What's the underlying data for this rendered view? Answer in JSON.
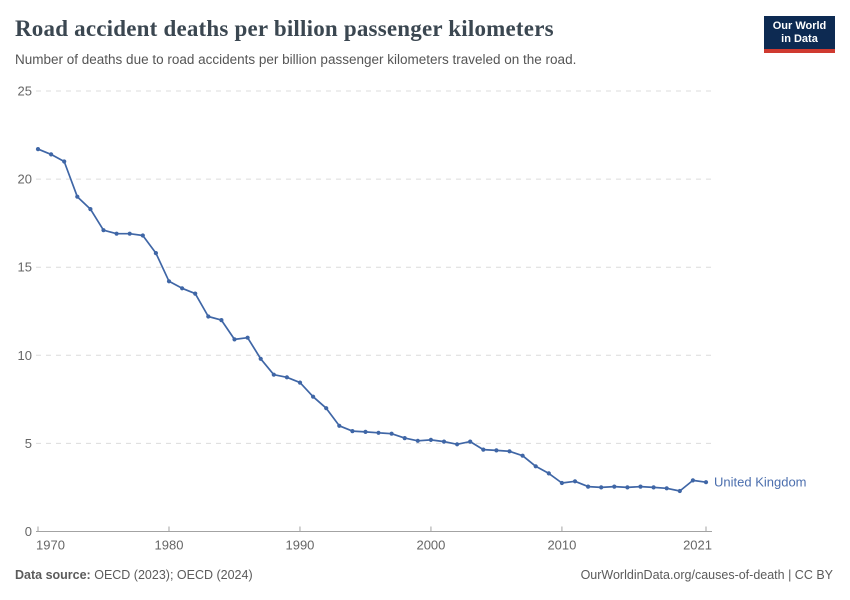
{
  "header": {
    "title": "Road accident deaths per billion passenger kilometers",
    "subtitle": "Number of deaths due to road accidents per billion passenger kilometers traveled on the road.",
    "logo": {
      "line1": "Our World",
      "line2": "in Data"
    }
  },
  "chart_data": {
    "type": "line",
    "title": "Road accident deaths per billion passenger kilometers",
    "xlabel": "",
    "ylabel": "",
    "xlim": [
      1970,
      2021
    ],
    "ylim": [
      0,
      25
    ],
    "x_ticks": [
      1970,
      1980,
      1990,
      2000,
      2010,
      2021
    ],
    "y_ticks": [
      0,
      5,
      10,
      15,
      20,
      25
    ],
    "grid": "horizontal-dashed",
    "legend_position": "end-of-line-label",
    "series": [
      {
        "name": "United Kingdom",
        "color": "#3f66a6",
        "label_color": "#4c6fae",
        "x": [
          1970,
          1971,
          1972,
          1973,
          1974,
          1975,
          1976,
          1977,
          1978,
          1979,
          1980,
          1981,
          1982,
          1983,
          1984,
          1985,
          1986,
          1987,
          1988,
          1989,
          1990,
          1991,
          1992,
          1993,
          1994,
          1995,
          1996,
          1997,
          1998,
          1999,
          2000,
          2001,
          2002,
          2003,
          2004,
          2005,
          2006,
          2007,
          2008,
          2009,
          2010,
          2011,
          2012,
          2013,
          2014,
          2015,
          2016,
          2017,
          2018,
          2019,
          2020,
          2021
        ],
        "values": [
          21.7,
          21.4,
          21.0,
          19.0,
          18.3,
          17.1,
          16.9,
          16.9,
          16.8,
          15.8,
          14.2,
          13.8,
          13.5,
          12.2,
          12.0,
          10.9,
          11.0,
          9.8,
          8.9,
          8.75,
          8.45,
          7.65,
          7.0,
          6.0,
          5.7,
          5.65,
          5.6,
          5.55,
          5.3,
          5.15,
          5.2,
          5.1,
          4.95,
          5.1,
          4.65,
          4.6,
          4.55,
          4.3,
          3.7,
          3.3,
          2.75,
          2.85,
          2.55,
          2.5,
          2.55,
          2.5,
          2.55,
          2.5,
          2.45,
          2.3,
          2.9,
          2.8
        ]
      }
    ],
    "colors": {
      "grid": "#dcdcdc",
      "axis": "#a3a3a3",
      "tick_label": "#666666"
    }
  },
  "footer": {
    "datasource_label": "Data source:",
    "datasource_value": "OECD (2023); OECD (2024)",
    "attribution": "OurWorldinData.org/causes-of-death | CC BY"
  }
}
